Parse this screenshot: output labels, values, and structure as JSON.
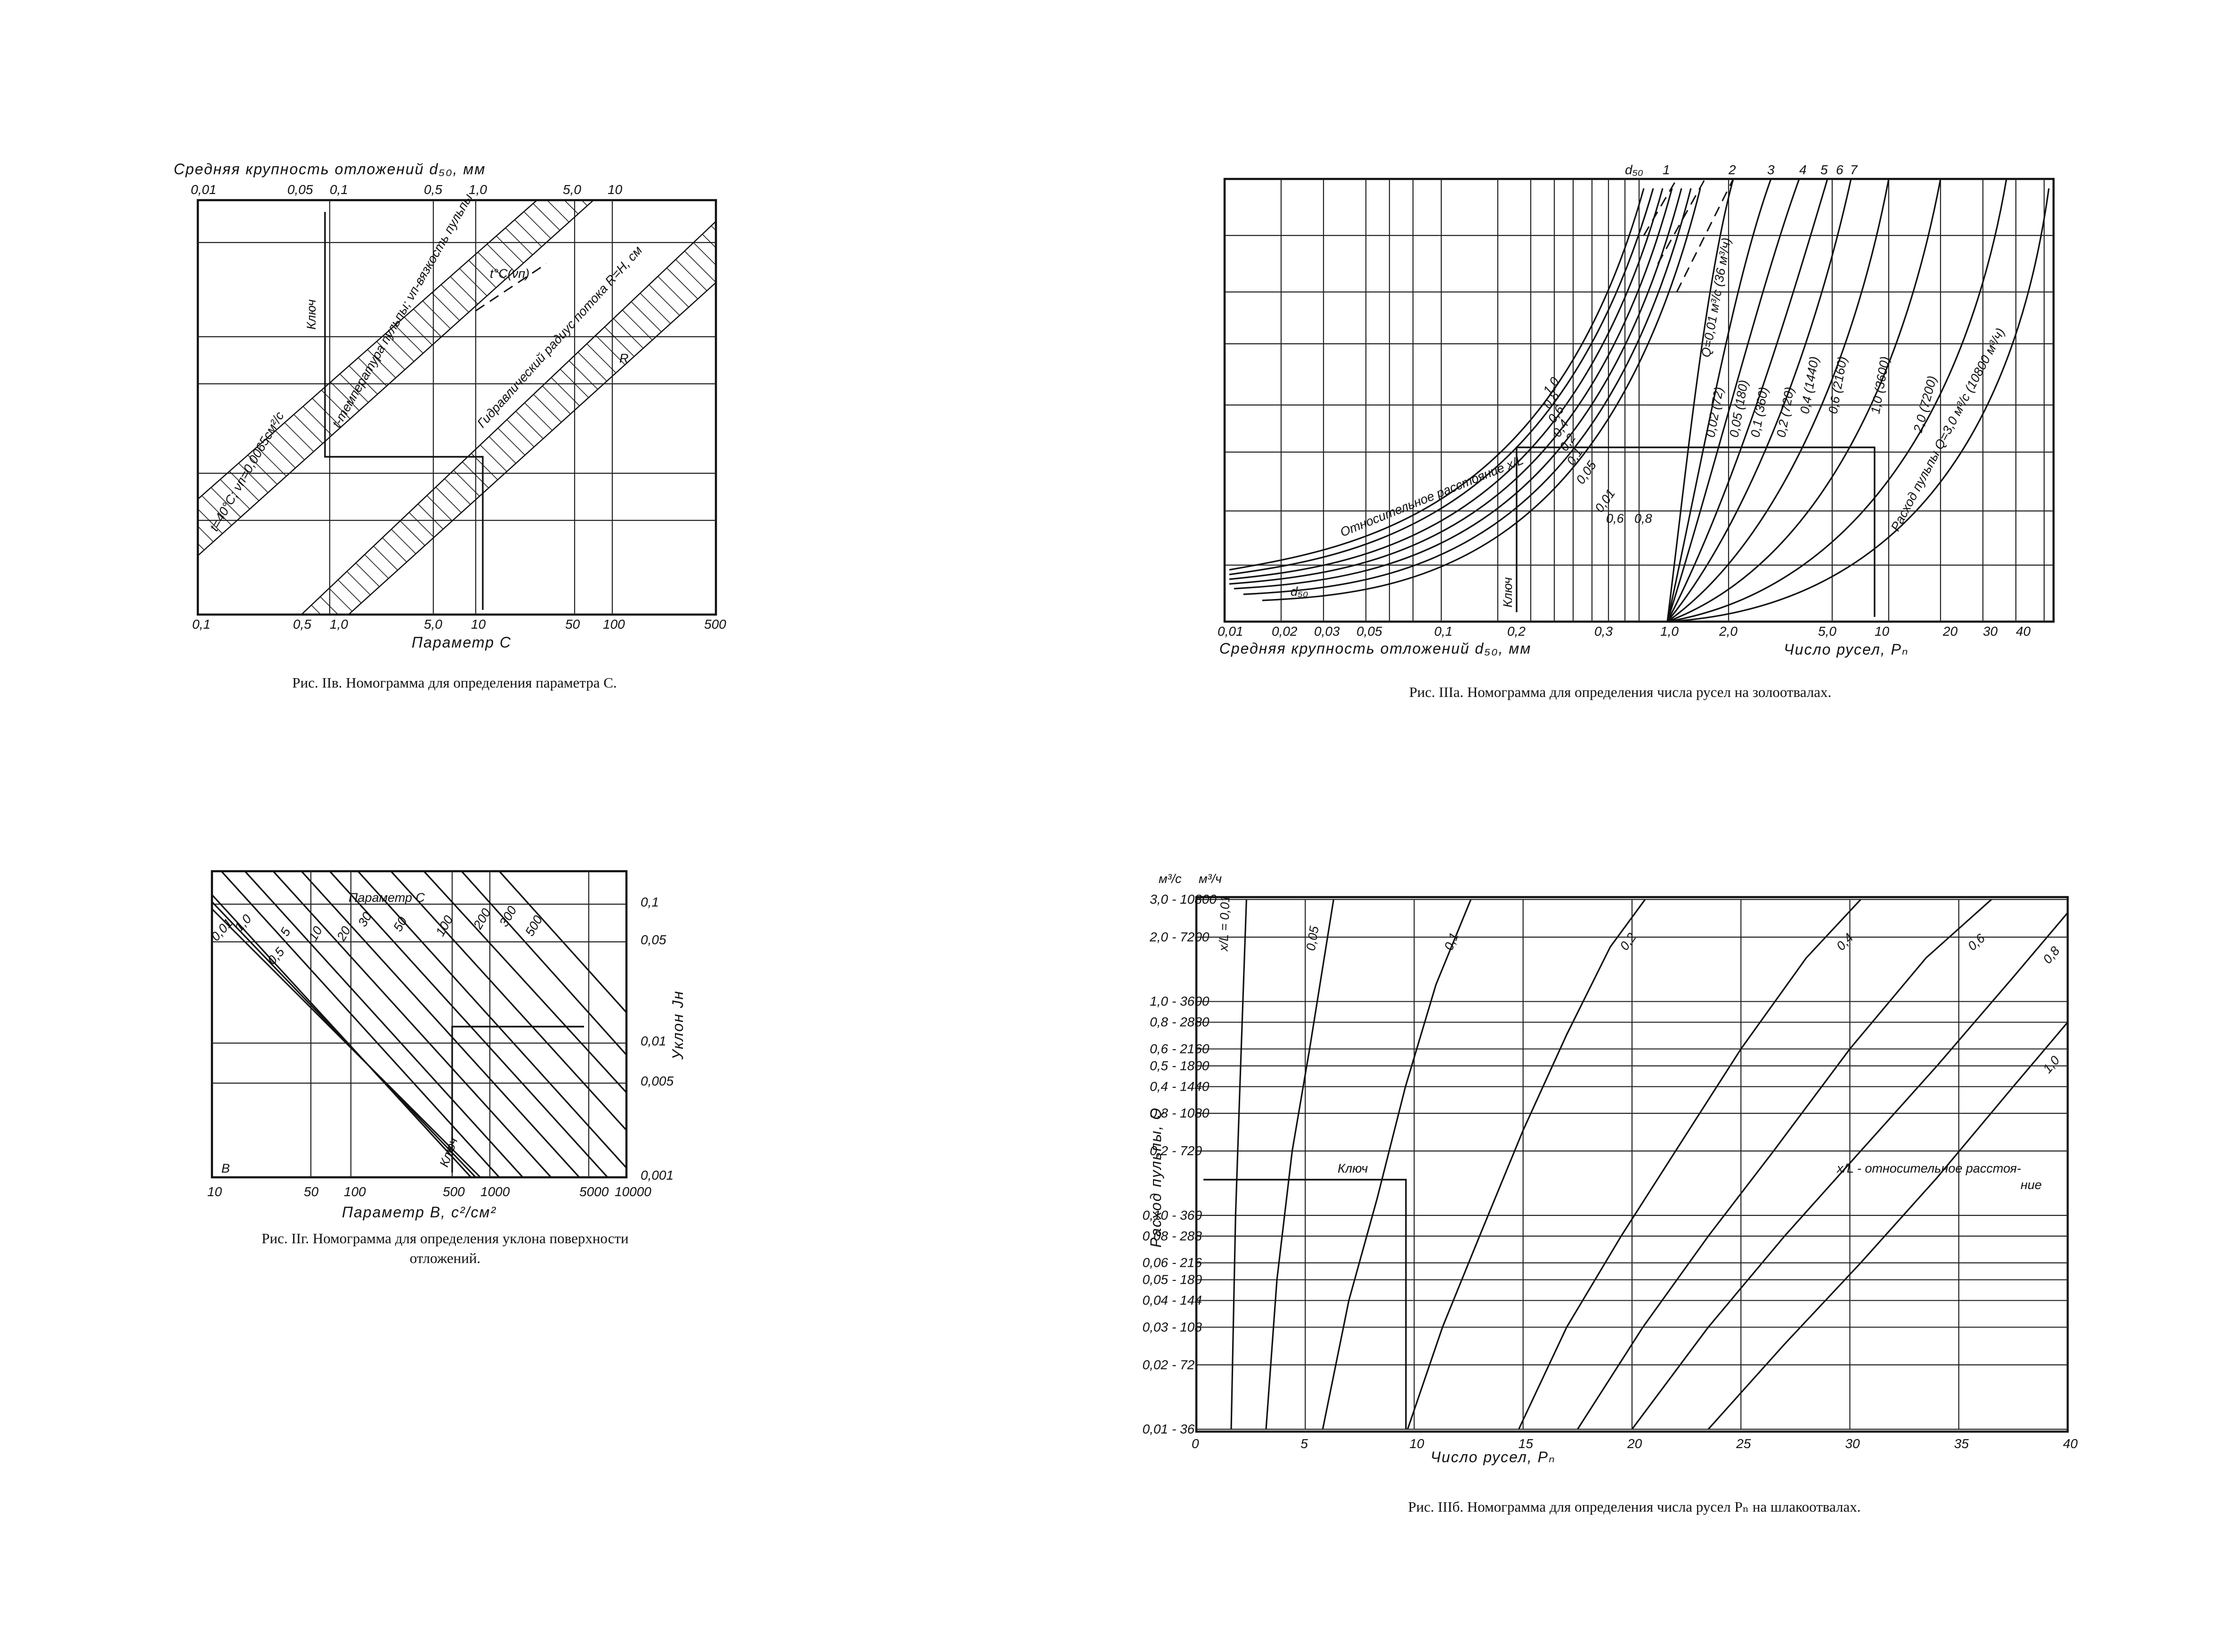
{
  "chart_data": [
    {
      "id": "IIv",
      "type": "line",
      "caption": "Рис. IIв. Номограмма для определения параметра C.",
      "top_axis_title": "Средняя крупность отложений d₅₀, мм",
      "top_ticks": [
        "0,01",
        "0,05",
        "0,1",
        "0,5",
        "1,0",
        "5,0",
        "10"
      ],
      "bottom_axis_title": "Параметр C",
      "bottom_ticks": [
        "0,1",
        "0,5",
        "1,0",
        "5,0",
        "10",
        "50",
        "100",
        "500"
      ],
      "labels": {
        "key": "Ключ",
        "temp": "t-температура пульпы; νп-вязкость пульпы",
        "radius": "Гидравлический радиус потока R=H, см",
        "tnu": "t°C(νп)",
        "R": "R",
        "tcond": "t=40°C; νп=0,0065см²/с"
      }
    },
    {
      "id": "IIIa",
      "type": "line",
      "caption": "Рис. IIIа. Номограмма для определения числа русел на золоотвалах.",
      "left_axis_title": "Средняя крупность отложений d₅₀, мм",
      "left_ticks": [
        "0,01",
        "0,02",
        "0,03",
        "0,05",
        "0,1",
        "0,2",
        "0,3"
      ],
      "right_axis_title": "Число русел, Pₙ",
      "right_ticks": [
        "1,0",
        "2,0",
        "5,0",
        "10",
        "20",
        "30",
        "40"
      ],
      "top_labels": [
        "d₅₀",
        "1",
        "2",
        "3",
        "4",
        "5",
        "6",
        "7"
      ],
      "rel_distance_label": "Относительное расстояние x/L",
      "rel_values": [
        "1,0",
        "0,8",
        "0,6",
        "0,4",
        "0,2",
        "0,1",
        "0,05",
        "0,01"
      ],
      "mid_labels": [
        "0,6",
        "0,8"
      ],
      "d50_label": "d₅₀",
      "key": "Ключ",
      "flow_title": "Расход пульпы Q=3,0 м³/с (10800 м³/ч)",
      "flow_labels": [
        "Q=0,01 м³/с (36 м³/ч)",
        "0,02 (72)",
        "0,05 (180)",
        "0,1 (360)",
        "0,2 (720)",
        "0,4 (1440)",
        "0,6 (2160)",
        "1,0 (3600)",
        "2,0 (7200)"
      ]
    },
    {
      "id": "IIg",
      "type": "line",
      "caption_lines": [
        "Рис. IIг. Номограмма для определения уклона поверхности",
        "отложений."
      ],
      "x_axis_title": "Параметр B, с²/см²",
      "x_ticks": [
        "10",
        "50",
        "100",
        "500",
        "1000",
        "5000",
        "10000"
      ],
      "y_axis_title": "Уклон Jн",
      "y_ticks": [
        "0,1",
        "0,05",
        "0,01",
        "0,005",
        "0,001"
      ],
      "series_title": "Параметр C",
      "series_labels": [
        "0,01",
        "1,0",
        "0,5",
        "5",
        "10",
        "20",
        "30",
        "50",
        "100",
        "200",
        "300",
        "500"
      ],
      "corner_label": "B",
      "key": "Ключ"
    },
    {
      "id": "IIIb",
      "type": "line",
      "caption": "Рис. IIIб. Номограмма для определения числа русел Pₙ на шлакоотвалах.",
      "unit_left": "м³/с",
      "unit_right": "м³/ч",
      "y_axis_title": "Расход пульпы, Q",
      "y_ticks_left": [
        "3,0",
        "2,0",
        "1,0",
        "0,8",
        "0,6",
        "0,5",
        "0,4",
        "0,3",
        "0,2",
        "0,10",
        "0,08",
        "0,06",
        "0,05",
        "0,04",
        "0,03",
        "0,02",
        "0,01"
      ],
      "y_ticks_right": [
        "10800",
        "7200",
        "3600",
        "2880",
        "2160",
        "1800",
        "1440",
        "1080",
        "720",
        "360",
        "288",
        "216",
        "180",
        "144",
        "108",
        "72",
        "36"
      ],
      "y_tick_values": [
        3.0,
        2.0,
        1.0,
        0.8,
        0.6,
        0.5,
        0.4,
        0.3,
        0.2,
        0.1,
        0.08,
        0.06,
        0.05,
        0.04,
        0.03,
        0.02,
        0.01
      ],
      "x_axis_title": "Число русел, Pₙ",
      "x_ticks": [
        "0",
        "5",
        "10",
        "15",
        "20",
        "25",
        "30",
        "35",
        "40"
      ],
      "x_tick_values": [
        0,
        5,
        10,
        15,
        20,
        25,
        30,
        35,
        40
      ],
      "series": [
        {
          "name": "x/L=0,01",
          "label": "x/L = 0,01",
          "points": [
            [
              1.6,
              0.01
            ],
            [
              1.8,
              0.1
            ],
            [
              2.0,
              0.4
            ],
            [
              2.3,
              3.0
            ]
          ]
        },
        {
          "name": "0,05",
          "label": "0,05",
          "points": [
            [
              3.2,
              0.01
            ],
            [
              3.7,
              0.05
            ],
            [
              4.4,
              0.2
            ],
            [
              5.2,
              0.6
            ],
            [
              6.3,
              3.0
            ]
          ]
        },
        {
          "name": "0,1",
          "label": "0,1",
          "points": [
            [
              5.8,
              0.01
            ],
            [
              7.0,
              0.04
            ],
            [
              8.3,
              0.12
            ],
            [
              9.6,
              0.4
            ],
            [
              11.0,
              1.2
            ],
            [
              12.6,
              3.0
            ]
          ]
        },
        {
          "name": "0,2",
          "label": "0,2",
          "points": [
            [
              9.7,
              0.01
            ],
            [
              11.3,
              0.03
            ],
            [
              13.0,
              0.08
            ],
            [
              15.0,
              0.25
            ],
            [
              17.0,
              0.7
            ],
            [
              19.0,
              1.8
            ],
            [
              20.6,
              3.0
            ]
          ]
        },
        {
          "name": "0,4",
          "label": "0,4",
          "points": [
            [
              14.8,
              0.01
            ],
            [
              17.0,
              0.03
            ],
            [
              19.5,
              0.08
            ],
            [
              22.0,
              0.2
            ],
            [
              25.0,
              0.6
            ],
            [
              28.0,
              1.6
            ],
            [
              30.5,
              3.0
            ]
          ]
        },
        {
          "name": "0,6",
          "label": "0,6",
          "points": [
            [
              17.5,
              0.01
            ],
            [
              20.5,
              0.03
            ],
            [
              23.5,
              0.08
            ],
            [
              26.5,
              0.2
            ],
            [
              30.0,
              0.6
            ],
            [
              33.5,
              1.6
            ],
            [
              36.5,
              3.0
            ]
          ]
        },
        {
          "name": "0,8",
          "label": "0,8",
          "points": [
            [
              20.0,
              0.01
            ],
            [
              23.5,
              0.03
            ],
            [
              27.0,
              0.08
            ],
            [
              30.5,
              0.2
            ],
            [
              34.0,
              0.5
            ],
            [
              37.5,
              1.3
            ],
            [
              40.0,
              2.6
            ]
          ]
        },
        {
          "name": "1,0",
          "label": "1,0",
          "points": [
            [
              23.5,
              0.01
            ],
            [
              27.0,
              0.025
            ],
            [
              30.5,
              0.06
            ],
            [
              34.0,
              0.15
            ],
            [
              37.5,
              0.4
            ],
            [
              40.0,
              0.8
            ]
          ]
        }
      ],
      "key": "Ключ",
      "legend_lines": [
        "x/L - относительное расстоя-",
        "ние"
      ]
    }
  ]
}
